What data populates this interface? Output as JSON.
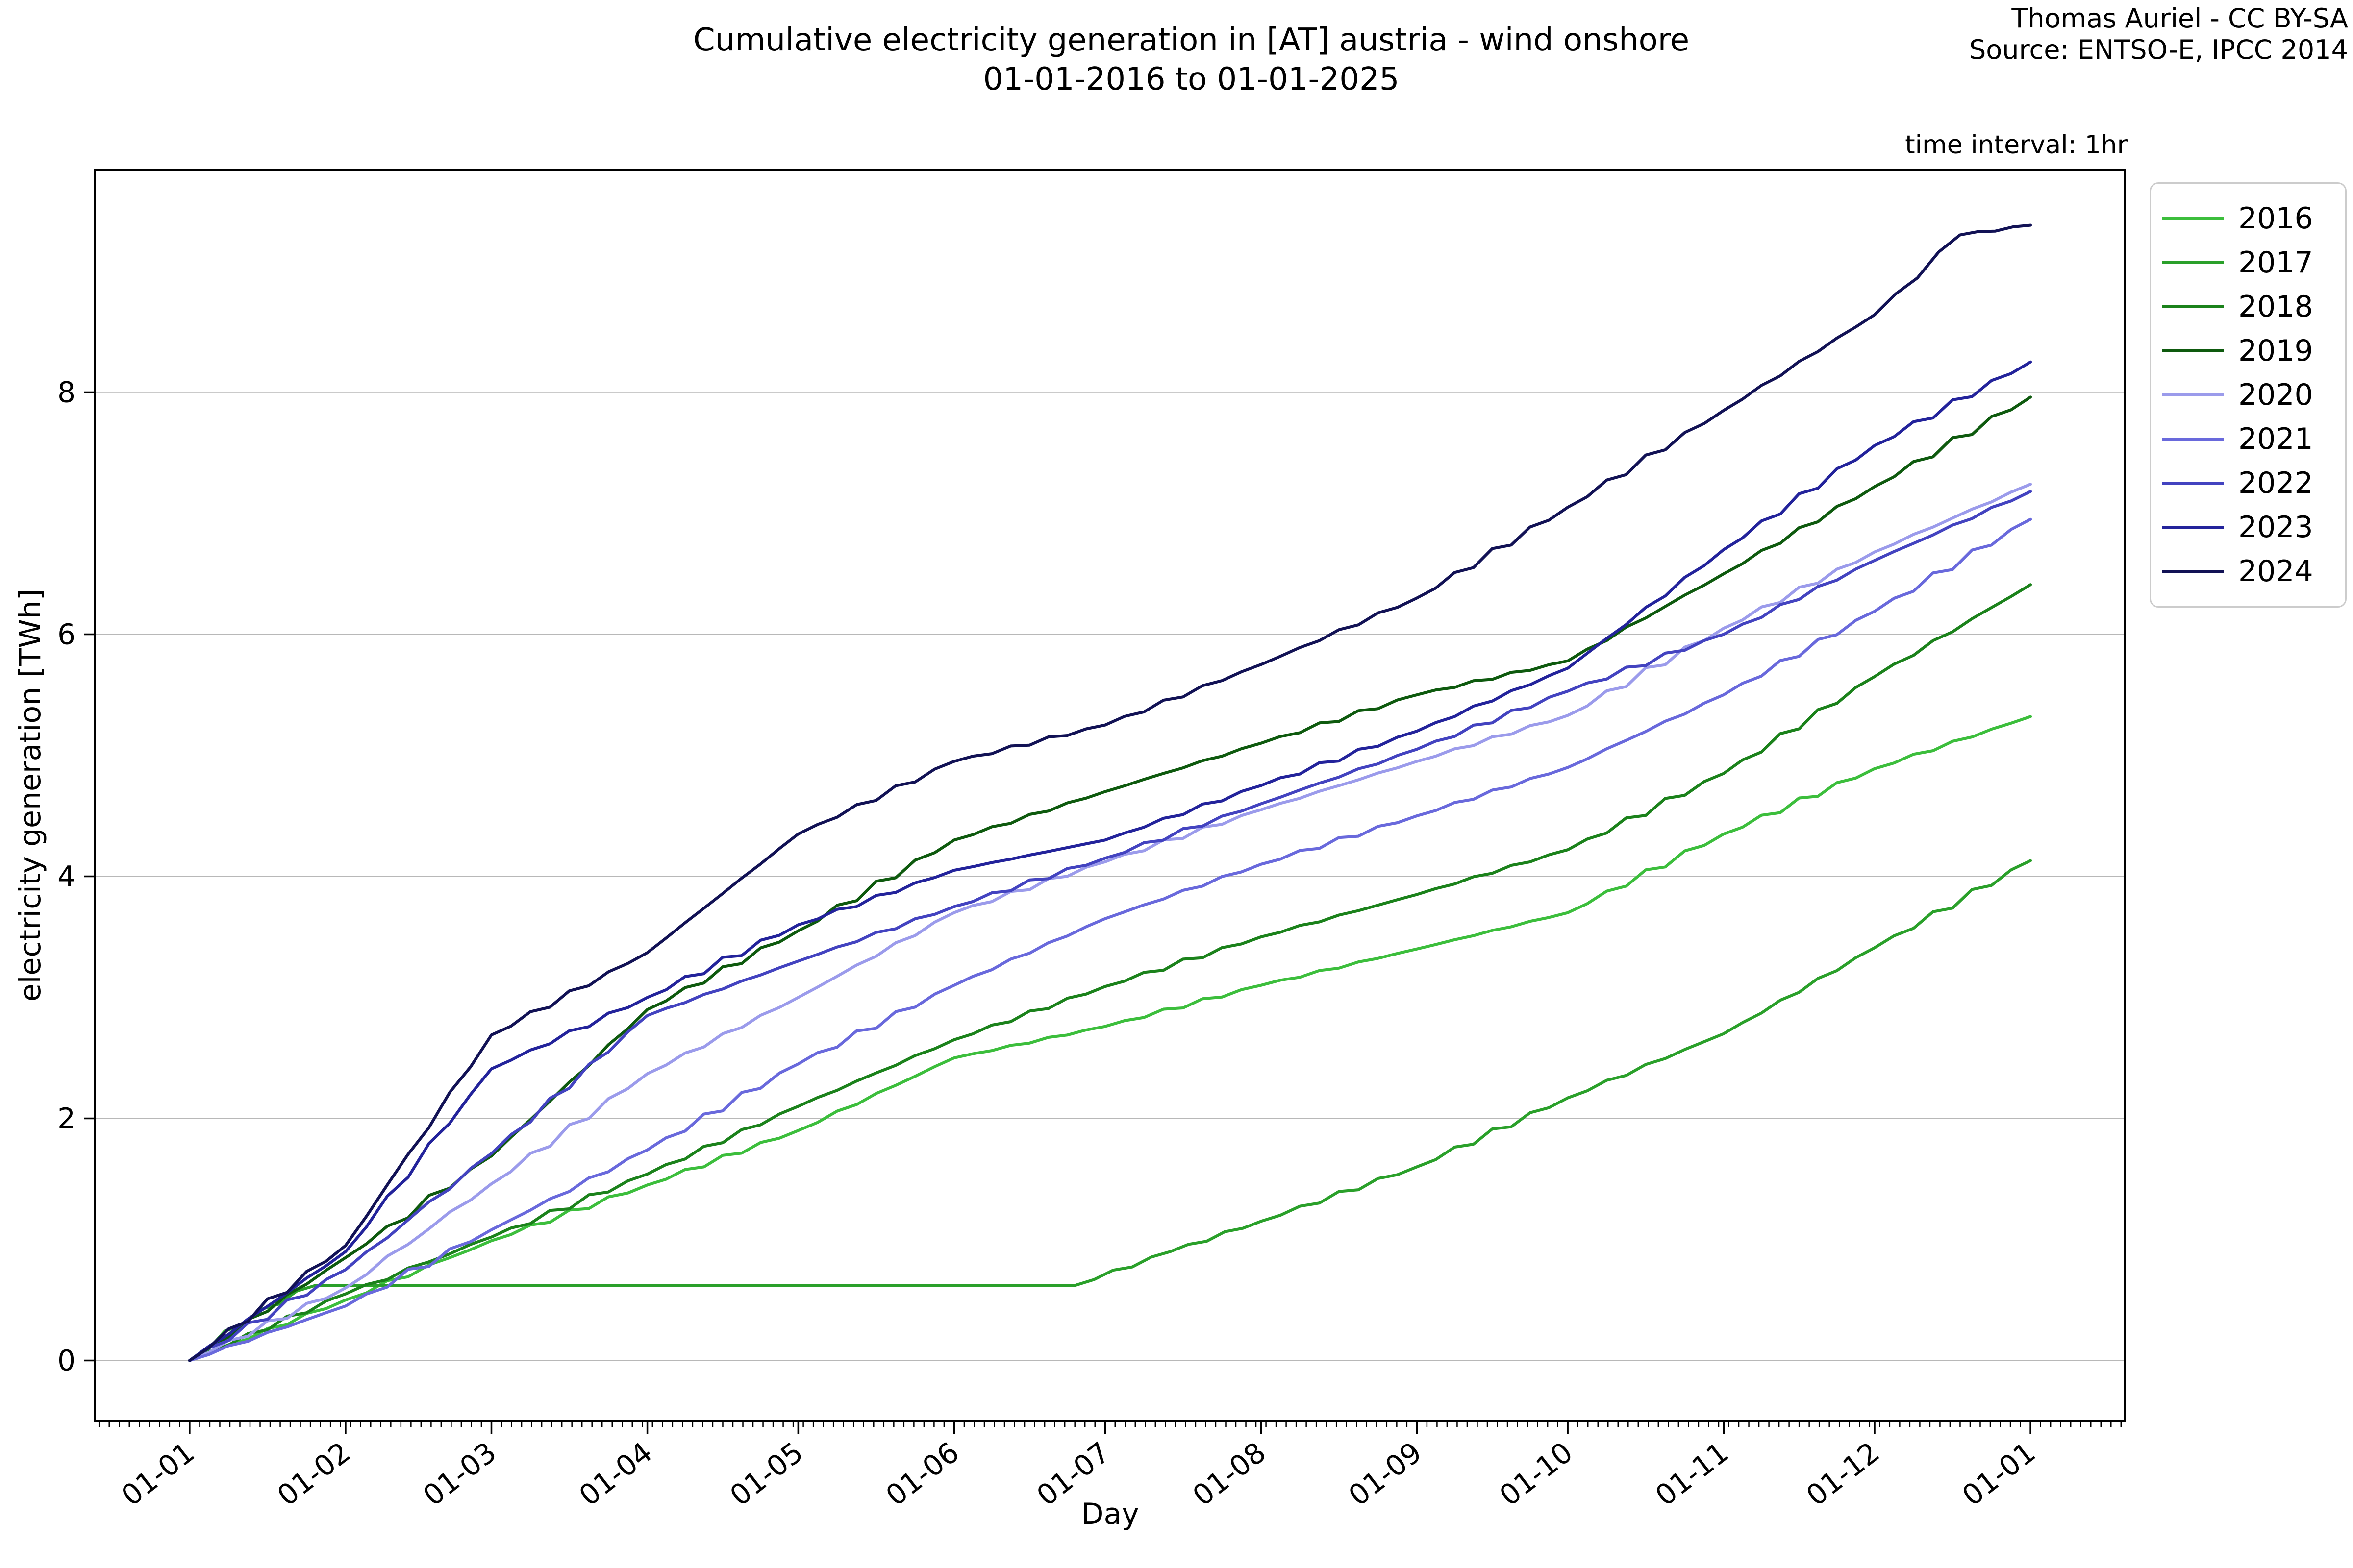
{
  "header": {
    "title_line1": "Cumulative electricity generation in [AT] austria - wind onshore",
    "title_line2": "01-01-2016 to 01-01-2025",
    "attribution_line1": "Thomas Auriel - CC BY-SA",
    "attribution_line2": "Source: ENTSO-E, IPCC 2014",
    "time_interval_note": "time interval: 1hr"
  },
  "chart_data": {
    "type": "line",
    "title": "Cumulative electricity generation in [AT] austria - wind onshore 01-01-2016 to 01-01-2025",
    "xlabel": "Day",
    "ylabel": "electricity generation [TWh]",
    "grid": true,
    "grid_color": "#b8b8b8",
    "spine_color": "#000000",
    "legend_position": "upper right, outside axes",
    "ylim": [
      -0.5,
      9.84
    ],
    "yticks": [
      0,
      2,
      4,
      6,
      8
    ],
    "xlim_days": [
      -18.8,
      384.8
    ],
    "x_tick_days": [
      0,
      31,
      60,
      91,
      121,
      152,
      182,
      213,
      244,
      274,
      305,
      335,
      366
    ],
    "x_tick_labels": [
      "01-01",
      "01-02",
      "01-03",
      "01-04",
      "01-05",
      "01-06",
      "01-07",
      "01-08",
      "01-09",
      "01-10",
      "01-11",
      "01-12",
      "01-01"
    ],
    "x_minor_tick_step_days": 2,
    "x_tick_label_rotation_deg": -38,
    "series": [
      {
        "name": "2016",
        "color": "#3cbe3c",
        "points": [
          [
            0,
            0
          ],
          [
            31,
            0.5
          ],
          [
            60,
            0.99
          ],
          [
            91,
            1.45
          ],
          [
            121,
            1.9
          ],
          [
            152,
            2.5
          ],
          [
            182,
            2.76
          ],
          [
            213,
            3.1
          ],
          [
            244,
            3.4
          ],
          [
            274,
            3.7
          ],
          [
            305,
            4.35
          ],
          [
            335,
            4.89
          ],
          [
            366,
            5.32
          ]
        ]
      },
      {
        "name": "2017",
        "color": "#2aa02a",
        "points": [
          [
            0,
            0
          ],
          [
            14,
            0.42
          ],
          [
            25,
            0.62
          ],
          [
            176,
            0.62
          ],
          [
            195,
            0.9
          ],
          [
            213,
            1.15
          ],
          [
            244,
            1.6
          ],
          [
            274,
            2.17
          ],
          [
            305,
            2.7
          ],
          [
            335,
            3.41
          ],
          [
            366,
            4.13
          ]
        ]
      },
      {
        "name": "2018",
        "color": "#1b821b",
        "points": [
          [
            0,
            0
          ],
          [
            31,
            0.55
          ],
          [
            60,
            1.02
          ],
          [
            91,
            1.54
          ],
          [
            121,
            2.1
          ],
          [
            152,
            2.65
          ],
          [
            182,
            3.09
          ],
          [
            213,
            3.5
          ],
          [
            244,
            3.85
          ],
          [
            274,
            4.22
          ],
          [
            305,
            4.85
          ],
          [
            335,
            5.65
          ],
          [
            366,
            6.41
          ]
        ]
      },
      {
        "name": "2019",
        "color": "#0e5a0e",
        "points": [
          [
            0,
            0
          ],
          [
            31,
            0.85
          ],
          [
            60,
            1.69
          ],
          [
            91,
            2.9
          ],
          [
            121,
            3.55
          ],
          [
            152,
            4.3
          ],
          [
            182,
            4.7
          ],
          [
            213,
            5.1
          ],
          [
            244,
            5.5
          ],
          [
            274,
            5.78
          ],
          [
            305,
            6.5
          ],
          [
            335,
            7.22
          ],
          [
            366,
            7.96
          ]
        ]
      },
      {
        "name": "2020",
        "color": "#9b9beb",
        "points": [
          [
            0,
            0
          ],
          [
            31,
            0.6
          ],
          [
            60,
            1.46
          ],
          [
            91,
            2.37
          ],
          [
            121,
            3.0
          ],
          [
            152,
            3.7
          ],
          [
            182,
            4.12
          ],
          [
            213,
            4.55
          ],
          [
            244,
            4.95
          ],
          [
            274,
            5.33
          ],
          [
            305,
            6.05
          ],
          [
            335,
            6.68
          ],
          [
            366,
            7.24
          ]
        ]
      },
      {
        "name": "2021",
        "color": "#6969dc",
        "points": [
          [
            0,
            0
          ],
          [
            31,
            0.45
          ],
          [
            60,
            1.08
          ],
          [
            91,
            1.74
          ],
          [
            121,
            2.45
          ],
          [
            152,
            3.1
          ],
          [
            182,
            3.65
          ],
          [
            213,
            4.1
          ],
          [
            244,
            4.5
          ],
          [
            274,
            4.9
          ],
          [
            305,
            5.5
          ],
          [
            335,
            6.19
          ],
          [
            366,
            6.95
          ]
        ]
      },
      {
        "name": "2022",
        "color": "#4343c0",
        "points": [
          [
            0,
            0
          ],
          [
            31,
            0.75
          ],
          [
            60,
            1.71
          ],
          [
            91,
            2.85
          ],
          [
            121,
            3.3
          ],
          [
            152,
            3.75
          ],
          [
            182,
            4.15
          ],
          [
            213,
            4.6
          ],
          [
            244,
            5.05
          ],
          [
            274,
            5.53
          ],
          [
            305,
            6.0
          ],
          [
            335,
            6.61
          ],
          [
            366,
            7.18
          ]
        ]
      },
      {
        "name": "2023",
        "color": "#23239b",
        "points": [
          [
            0,
            0
          ],
          [
            31,
            0.9
          ],
          [
            60,
            2.41
          ],
          [
            91,
            3.0
          ],
          [
            121,
            3.6
          ],
          [
            152,
            4.05
          ],
          [
            182,
            4.3
          ],
          [
            213,
            4.75
          ],
          [
            244,
            5.2
          ],
          [
            274,
            5.72
          ],
          [
            305,
            6.7
          ],
          [
            335,
            7.56
          ],
          [
            366,
            8.25
          ]
        ]
      },
      {
        "name": "2024",
        "color": "#121255",
        "points": [
          [
            0,
            0
          ],
          [
            31,
            0.95
          ],
          [
            60,
            2.69
          ],
          [
            91,
            3.37
          ],
          [
            121,
            4.35
          ],
          [
            152,
            4.95
          ],
          [
            182,
            5.25
          ],
          [
            213,
            5.75
          ],
          [
            244,
            6.3
          ],
          [
            274,
            7.05
          ],
          [
            305,
            7.85
          ],
          [
            335,
            8.64
          ],
          [
            352,
            9.3
          ],
          [
            366,
            9.38
          ]
        ]
      }
    ]
  }
}
